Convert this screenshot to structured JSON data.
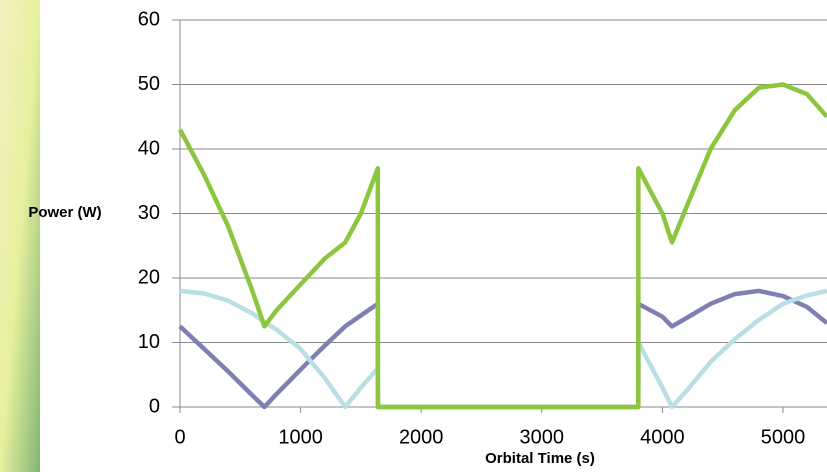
{
  "chart_data": {
    "type": "line",
    "x_label": "Orbital Time (s)",
    "y_label": "Power (W)",
    "x": [
      0,
      200,
      400,
      600,
      700,
      800,
      1000,
      1200,
      1370,
      1500,
      1640,
      1641,
      3800,
      3801,
      4000,
      4080,
      4200,
      4400,
      4600,
      4800,
      5000,
      5200,
      5365
    ],
    "series": [
      {
        "color": "#7f7fb3",
        "values": [
          12.5,
          9,
          5.5,
          1.8,
          0,
          2,
          5.8,
          9.5,
          12.5,
          14.2,
          16,
          0,
          0,
          16,
          14,
          12.5,
          13.8,
          16,
          17.5,
          18,
          17.2,
          15.5,
          13
        ]
      },
      {
        "color": "#b9dfe4",
        "values": [
          18,
          17.6,
          16.5,
          14.5,
          13.2,
          12,
          9,
          4.5,
          0,
          3,
          6,
          0,
          0,
          10,
          3,
          0,
          2.5,
          7,
          10.5,
          13.5,
          16,
          17.3,
          18
        ]
      },
      {
        "color": "#8cc63f",
        "values": [
          43,
          36,
          28,
          18,
          12.5,
          15,
          19,
          23,
          25.5,
          30,
          37,
          0,
          0,
          37,
          30,
          25.5,
          31,
          40,
          46,
          49.5,
          50,
          48.5,
          45
        ]
      }
    ],
    "xlim": [
      0,
      5365
    ],
    "ylim": [
      0,
      60
    ],
    "xticks": [
      0,
      1000,
      2000,
      3000,
      4000,
      5000
    ],
    "yticks": [
      0,
      10,
      20,
      30,
      40,
      50,
      60
    ],
    "grid": true
  }
}
